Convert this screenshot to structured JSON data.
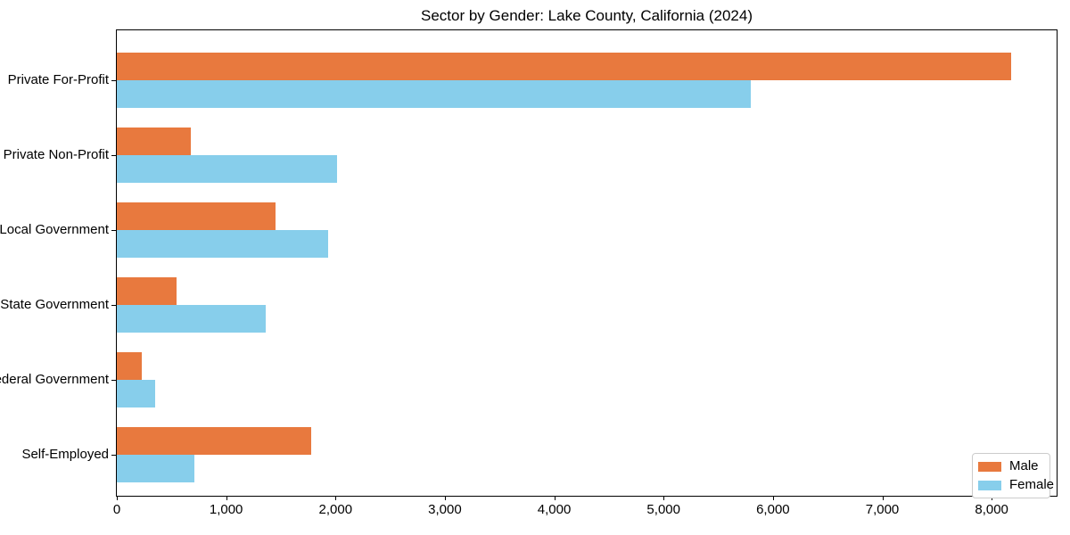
{
  "title": "Sector by Gender: Lake County, California (2024)",
  "colors": {
    "male": "#e8793e",
    "female": "#87ceeb",
    "axis": "#000000",
    "legend_border": "#cccccc",
    "background": "#ffffff"
  },
  "legend": {
    "position": "lower right",
    "entries": [
      {
        "label": "Male",
        "color": "#e8793e"
      },
      {
        "label": "Female",
        "color": "#87ceeb"
      }
    ]
  },
  "chart_data": {
    "type": "bar",
    "orientation": "horizontal",
    "title": "Sector by Gender: Lake County, California (2024)",
    "categories": [
      "Private For-Profit",
      "Private Non-Profit",
      "Local Government",
      "State Government",
      "Federal Government",
      "Self-Employed"
    ],
    "series": [
      {
        "name": "Male",
        "color": "#e8793e",
        "values": [
          8180,
          680,
          1450,
          550,
          230,
          1780
        ]
      },
      {
        "name": "Female",
        "color": "#87ceeb",
        "values": [
          5800,
          2010,
          1930,
          1360,
          350,
          710
        ]
      }
    ],
    "xlabel": "",
    "ylabel": "",
    "xlim": [
      0,
      8594
    ],
    "xticks": [
      0,
      1000,
      2000,
      3000,
      4000,
      5000,
      6000,
      7000,
      8000
    ],
    "xtick_labels": [
      "0",
      "1,000",
      "2,000",
      "3,000",
      "4,000",
      "5,000",
      "6,000",
      "7,000",
      "8,000"
    ],
    "grid": false,
    "legend_position": "lower right"
  }
}
